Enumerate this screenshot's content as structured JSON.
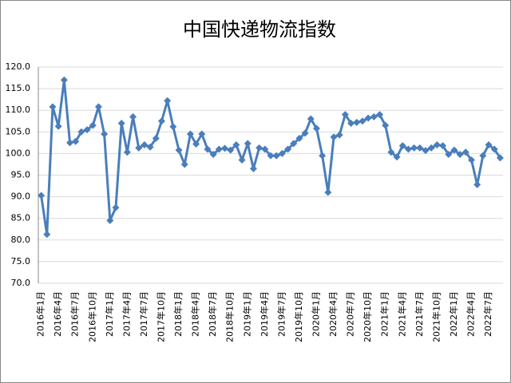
{
  "chart_data": {
    "type": "line",
    "title": "中国快递物流指数",
    "categories": [
      "2016年1月",
      null,
      null,
      "2016年4月",
      null,
      null,
      "2016年7月",
      null,
      null,
      "2016年10月",
      null,
      null,
      "2017年1月",
      null,
      null,
      "2017年4月",
      null,
      null,
      "2017年7月",
      null,
      null,
      "2017年10月",
      null,
      null,
      "2018年1月",
      null,
      null,
      "2018年4月",
      null,
      null,
      "2018年7月",
      null,
      null,
      "2018年10月",
      null,
      null,
      "2019年1月",
      null,
      null,
      "2019年4月",
      null,
      null,
      "2019年7月",
      null,
      null,
      "2019年10月",
      null,
      null,
      "2020年1月",
      null,
      null,
      "2020年4月",
      null,
      null,
      "2020年7月",
      null,
      null,
      "2020年10月",
      null,
      null,
      "2021年1月",
      null,
      null,
      "2021年4月",
      null,
      null,
      "2021年7月",
      null,
      null,
      "2021年10月",
      null,
      null,
      "2022年1月",
      null,
      null,
      "2022年4月",
      null,
      null,
      "2022年7月",
      null,
      null
    ],
    "values": [
      90.3,
      81.3,
      110.8,
      106.3,
      117.0,
      102.5,
      102.8,
      105.0,
      105.5,
      106.5,
      110.8,
      104.5,
      84.5,
      87.5,
      107.0,
      100.3,
      108.5,
      101.3,
      102.0,
      101.5,
      103.5,
      107.5,
      112.2,
      106.2,
      100.8,
      97.5,
      104.5,
      102.2,
      104.5,
      101.0,
      99.8,
      101.0,
      101.2,
      100.8,
      102.0,
      98.5,
      102.3,
      96.5,
      101.3,
      101.0,
      99.5,
      99.5,
      100.0,
      101.0,
      102.3,
      103.5,
      104.7,
      108.0,
      105.8,
      99.5,
      91.0,
      103.8,
      104.3,
      109.0,
      107.0,
      107.2,
      107.5,
      108.2,
      108.5,
      109.0,
      106.5,
      100.3,
      99.2,
      101.8,
      101.0,
      101.3,
      101.3,
      100.7,
      101.3,
      102.0,
      101.8,
      99.8,
      100.8,
      99.8,
      100.3,
      98.5,
      92.8,
      99.5,
      102.0,
      101.0,
      99.0
    ],
    "color": "#4a7ebb",
    "ylim": [
      70,
      120
    ],
    "yticks": [
      {
        "value": 70,
        "label": "70.0"
      },
      {
        "value": 75,
        "label": "75.0"
      },
      {
        "value": 80,
        "label": "80.0"
      },
      {
        "value": 85,
        "label": "85.0"
      },
      {
        "value": 90,
        "label": "90.0"
      },
      {
        "value": 95,
        "label": "95.0"
      },
      {
        "value": 100,
        "label": "100.0"
      },
      {
        "value": 105,
        "label": "105.0"
      },
      {
        "value": 110,
        "label": "110.0"
      },
      {
        "value": 115,
        "label": "115.0"
      },
      {
        "value": 120,
        "label": "120.0"
      }
    ],
    "grid": true
  }
}
